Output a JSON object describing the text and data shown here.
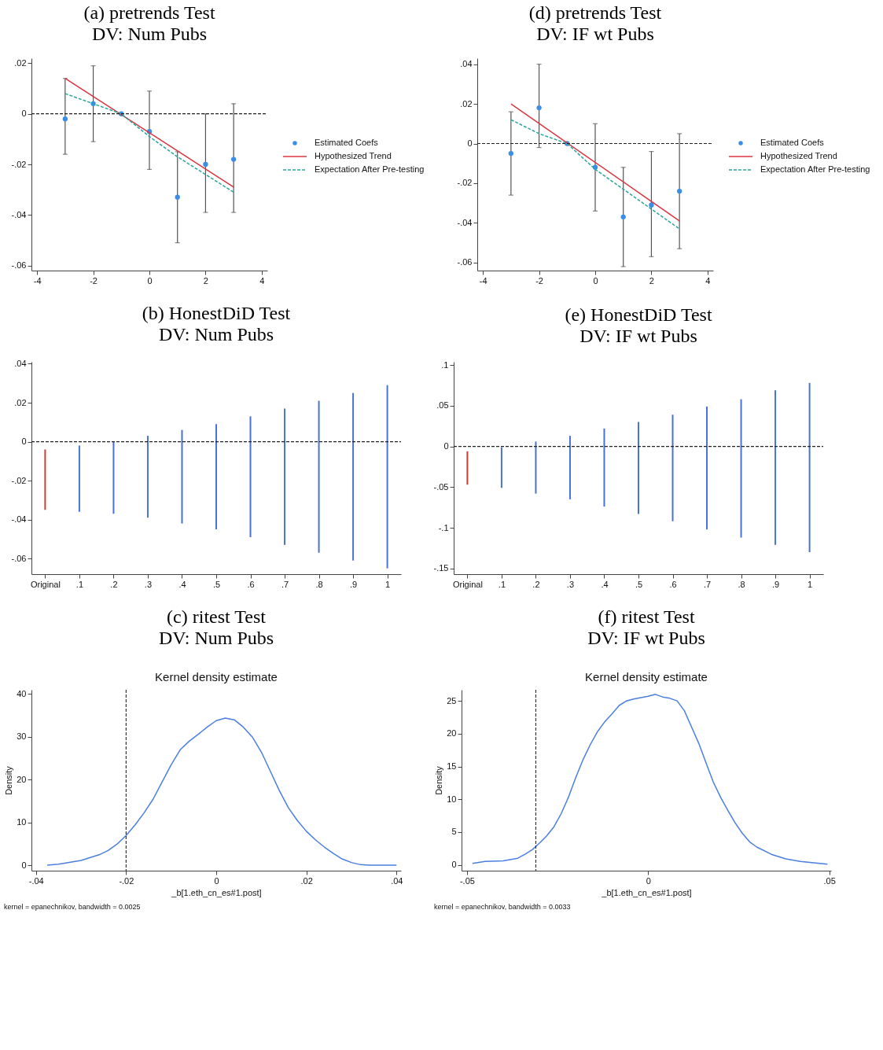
{
  "chart_data": [
    {
      "type": "scatter",
      "title": "(a) pretrends Test",
      "subtitle": "DV: Num Pubs",
      "legend": "right",
      "xlim": [
        -4.2,
        4.2
      ],
      "ylim": [
        -0.062,
        0.022
      ],
      "xticks": [
        -4,
        -2,
        0,
        2,
        4
      ],
      "yticks": [
        {
          "value": 0.02,
          "label": ".02"
        },
        0,
        {
          "value": -0.02,
          "label": "-.02"
        },
        {
          "value": -0.04,
          "label": "-.04"
        },
        {
          "value": -0.06,
          "label": "-.06"
        }
      ],
      "ref_lines": [
        {
          "axis": "y",
          "value": 0,
          "line_style": "dashed",
          "color": "#222222"
        }
      ],
      "series": [
        {
          "name": "Estimated Coefs",
          "type": "scatter",
          "marker": "circle",
          "color": "#3a8ee6",
          "x": [
            -3,
            -2,
            -1,
            0,
            1,
            2,
            3
          ],
          "values": [
            -0.002,
            0.004,
            0,
            -0.007,
            -0.033,
            -0.02,
            -0.018
          ],
          "errors": [
            [
              -0.016,
              0.014
            ],
            [
              -0.011,
              0.019
            ],
            null,
            [
              -0.022,
              0.009
            ],
            [
              -0.051,
              -0.015
            ],
            [
              -0.039,
              0.0
            ],
            [
              -0.039,
              0.004
            ]
          ]
        },
        {
          "name": "Hypothesized Trend",
          "type": "line",
          "color": "#d9343f",
          "x": [
            -3,
            3
          ],
          "values": [
            0.014,
            -0.029
          ]
        },
        {
          "name": "Expectation After Pre-testing",
          "type": "line",
          "line_style": "dashed",
          "color": "#2ba59a",
          "x": [
            -3,
            -2,
            -1,
            0,
            1,
            2,
            3
          ],
          "values": [
            0.008,
            0.004,
            0,
            -0.009,
            -0.017,
            -0.024,
            -0.031
          ]
        }
      ]
    },
    {
      "type": "scatter",
      "title": "(d) pretrends Test",
      "subtitle": "DV: IF wt Pubs",
      "legend": "right",
      "xlim": [
        -4.2,
        4.2
      ],
      "ylim": [
        -0.064,
        0.043
      ],
      "xticks": [
        -4,
        -2,
        0,
        2,
        4
      ],
      "yticks": [
        {
          "value": 0.04,
          "label": ".04"
        },
        {
          "value": 0.02,
          "label": ".02"
        },
        0,
        {
          "value": -0.02,
          "label": "-.02"
        },
        {
          "value": -0.04,
          "label": "-.04"
        },
        {
          "value": -0.06,
          "label": "-.06"
        }
      ],
      "ref_lines": [
        {
          "axis": "y",
          "value": 0,
          "line_style": "dashed",
          "color": "#222222"
        }
      ],
      "series": [
        {
          "name": "Estimated Coefs",
          "type": "scatter",
          "marker": "circle",
          "color": "#3a8ee6",
          "x": [
            -3,
            -2,
            -1,
            0,
            1,
            2,
            3
          ],
          "values": [
            -0.005,
            0.018,
            0,
            -0.012,
            -0.037,
            -0.031,
            -0.024
          ],
          "errors": [
            [
              -0.026,
              0.016
            ],
            [
              -0.002,
              0.04
            ],
            null,
            [
              -0.034,
              0.01
            ],
            [
              -0.062,
              -0.012
            ],
            [
              -0.057,
              -0.004
            ],
            [
              -0.053,
              0.005
            ]
          ]
        },
        {
          "name": "Hypothesized Trend",
          "type": "line",
          "color": "#d9343f",
          "x": [
            -3,
            3
          ],
          "values": [
            0.02,
            -0.039
          ]
        },
        {
          "name": "Expectation After Pre-testing",
          "type": "line",
          "line_style": "dashed",
          "color": "#2ba59a",
          "x": [
            -3,
            -2,
            -1,
            0,
            1,
            2,
            3
          ],
          "values": [
            0.012,
            0.005,
            0,
            -0.013,
            -0.023,
            -0.033,
            -0.043
          ]
        }
      ]
    },
    {
      "type": "bar",
      "title": "(b) HonestDiD Test",
      "subtitle": "DV: Num Pubs",
      "categories": [
        "Original",
        ".1",
        ".2",
        ".3",
        ".4",
        ".5",
        ".6",
        ".7",
        ".8",
        ".9",
        "1"
      ],
      "base": [
        -0.035,
        -0.036,
        -0.037,
        -0.039,
        -0.042,
        -0.045,
        -0.049,
        -0.053,
        -0.057,
        -0.061,
        -0.065
      ],
      "values": [
        0.031,
        0.034,
        0.037,
        0.042,
        0.048,
        0.054,
        0.062,
        0.07,
        0.078,
        0.086,
        0.094
      ],
      "colors": [
        "#d03a3a",
        "#4a72d0",
        "#4a72d0",
        "#4a72d0",
        "#4a72d0",
        "#4a72d0",
        "#4a72d0",
        "#4a72d0",
        "#4a72d0",
        "#4a72d0",
        "#4a72d0"
      ],
      "ylim": [
        -0.068,
        0.041
      ],
      "yticks": [
        {
          "value": 0.04,
          "label": ".04"
        },
        {
          "value": 0.02,
          "label": ".02"
        },
        0,
        {
          "value": -0.02,
          "label": "-.02"
        },
        {
          "value": -0.04,
          "label": "-.04"
        },
        {
          "value": -0.06,
          "label": "-.06"
        }
      ],
      "ref_lines": [
        {
          "axis": "y",
          "value": 0,
          "line_style": "dashed",
          "color": "#222222"
        }
      ]
    },
    {
      "type": "bar",
      "title": "(e) HonestDiD Test",
      "subtitle": "DV: IF wt Pubs",
      "categories": [
        "Original",
        ".1",
        ".2",
        ".3",
        ".4",
        ".5",
        ".6",
        ".7",
        ".8",
        ".9",
        "1"
      ],
      "base": [
        -0.047,
        -0.051,
        -0.058,
        -0.065,
        -0.074,
        -0.083,
        -0.092,
        -0.102,
        -0.112,
        -0.121,
        -0.13
      ],
      "values": [
        0.041,
        0.05,
        0.064,
        0.078,
        0.096,
        0.113,
        0.131,
        0.151,
        0.17,
        0.19,
        0.208
      ],
      "colors": [
        "#d03a3a",
        "#4a72d0",
        "#4a72d0",
        "#4a72d0",
        "#4a72d0",
        "#4a72d0",
        "#4a72d0",
        "#4a72d0",
        "#4a72d0",
        "#4a72d0",
        "#4a72d0"
      ],
      "ylim": [
        -0.157,
        0.104
      ],
      "yticks": [
        {
          "value": 0.1,
          "label": ".1"
        },
        {
          "value": 0.05,
          "label": ".05"
        },
        0,
        {
          "value": -0.05,
          "label": "-.05"
        },
        {
          "value": -0.1,
          "label": "-.1"
        },
        {
          "value": -0.15,
          "label": "-.15"
        }
      ],
      "ref_lines": [
        {
          "axis": "y",
          "value": 0,
          "line_style": "dashed",
          "color": "#222222"
        }
      ]
    },
    {
      "type": "line",
      "title": "(c) ritest Test",
      "subtitle": "DV: Num Pubs",
      "xlabel": "_b[1.eth_cn_es#1.post]",
      "ylabel": "Density",
      "annotations": [
        "Kernel density estimate",
        "kernel = epanechnikov, bandwidth = 0.0025"
      ],
      "xlim": [
        -0.041,
        0.041
      ],
      "ylim": [
        -1.2,
        41
      ],
      "xticks": [
        {
          "value": -0.04,
          "label": "-.04"
        },
        {
          "value": -0.02,
          "label": "-.02"
        },
        0,
        {
          "value": 0.02,
          "label": ".02"
        },
        {
          "value": 0.04,
          "label": ".04"
        }
      ],
      "yticks": [
        0,
        10,
        20,
        30,
        40
      ],
      "ref_lines": [
        {
          "axis": "x",
          "value": -0.02,
          "line_style": "dashed",
          "color": "#333333"
        }
      ],
      "series": [
        {
          "color": "#4a7fe0",
          "x": [
            -0.0375,
            -0.035,
            -0.03,
            -0.026,
            -0.024,
            -0.022,
            -0.02,
            -0.018,
            -0.016,
            -0.014,
            -0.012,
            -0.01,
            -0.008,
            -0.006,
            -0.004,
            -0.002,
            0.0,
            0.002,
            0.004,
            0.006,
            0.008,
            0.01,
            0.012,
            0.014,
            0.016,
            0.018,
            0.02,
            0.022,
            0.024,
            0.026,
            0.028,
            0.03,
            0.032,
            0.034,
            0.04
          ],
          "values": [
            0.1,
            0.3,
            1.2,
            2.5,
            3.5,
            5.0,
            7.0,
            9.5,
            12.3,
            15.5,
            19.5,
            23.5,
            27.0,
            29.0,
            30.6,
            32.3,
            33.8,
            34.4,
            34.0,
            32.3,
            30.0,
            26.5,
            22.0,
            17.5,
            13.5,
            10.5,
            8.0,
            6.0,
            4.3,
            2.8,
            1.5,
            0.7,
            0.2,
            0.1,
            0.1
          ]
        }
      ]
    },
    {
      "type": "line",
      "title": "(f) ritest Test",
      "subtitle": "DV: IF wt Pubs",
      "xlabel": "_b[1.eth_cn_es#1.post]",
      "ylabel": "Density",
      "annotations": [
        "Kernel density estimate",
        "kernel = epanechnikov, bandwidth = 0.0033"
      ],
      "xlim": [
        -0.0515,
        0.0505
      ],
      "ylim": [
        -0.9,
        26.7
      ],
      "xticks": [
        {
          "value": -0.05,
          "label": "-.05"
        },
        0,
        {
          "value": 0.05,
          "label": ".05"
        }
      ],
      "yticks": [
        0,
        5,
        10,
        15,
        20,
        25
      ],
      "ref_lines": [
        {
          "axis": "x",
          "value": -0.031,
          "line_style": "dashed",
          "color": "#333333"
        }
      ],
      "series": [
        {
          "color": "#4a7fe0",
          "x": [
            -0.0485,
            -0.045,
            -0.04,
            -0.036,
            -0.034,
            -0.032,
            -0.03,
            -0.028,
            -0.026,
            -0.024,
            -0.022,
            -0.02,
            -0.018,
            -0.016,
            -0.014,
            -0.012,
            -0.01,
            -0.008,
            -0.006,
            -0.004,
            0.0,
            0.002,
            0.004,
            0.006,
            0.008,
            0.01,
            0.012,
            0.014,
            0.016,
            0.018,
            0.02,
            0.022,
            0.024,
            0.026,
            0.028,
            0.03,
            0.034,
            0.038,
            0.042,
            0.0495
          ],
          "values": [
            0.2,
            0.5,
            0.6,
            1.0,
            1.6,
            2.3,
            3.3,
            4.4,
            5.8,
            7.8,
            10.3,
            13.3,
            16.0,
            18.3,
            20.3,
            21.8,
            23.0,
            24.3,
            25.0,
            25.3,
            25.7,
            26.0,
            25.6,
            25.4,
            25.0,
            23.5,
            21.0,
            18.5,
            15.5,
            12.6,
            10.3,
            8.3,
            6.4,
            4.8,
            3.5,
            2.7,
            1.6,
            0.9,
            0.5,
            0.1
          ]
        }
      ]
    }
  ]
}
